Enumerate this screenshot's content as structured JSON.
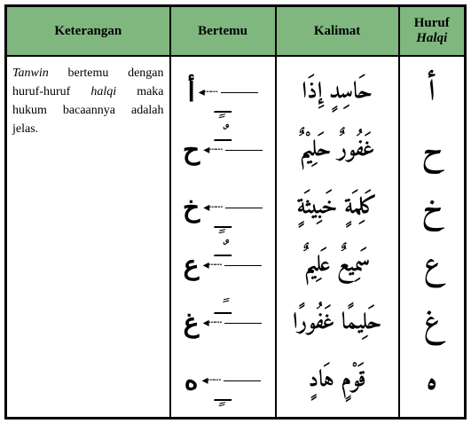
{
  "header": {
    "keterangan": "Keterangan",
    "bertemu": "Bertemu",
    "kalimat": "Kalimat",
    "huruf_line1": "Huruf",
    "huruf_line2": "Halqi"
  },
  "keterangan_text": {
    "part1": "Tanwin",
    "part2": " bertemu dengan huruf-huruf ",
    "part3": "halqi",
    "part4": " maka hukum bacaannya adalah jelas."
  },
  "rows": [
    {
      "arrow": "◂┄┄",
      "tanwin": "ــٍـ",
      "tanwin_pos": "bottom",
      "target": "أ",
      "kalimat": "حَاسِدٍ إِذَا",
      "huruf": "أ"
    },
    {
      "arrow": "◂┄┄",
      "tanwin": "ــٌـ",
      "tanwin_pos": "top",
      "target": "ح",
      "kalimat": "غَفُورٌ حَلِيْمٌ",
      "huruf": "ح"
    },
    {
      "arrow": "◂┄┄",
      "tanwin": "ــٍـ",
      "tanwin_pos": "bottom",
      "target": "خ",
      "kalimat": "كَلِمَةٍ خَبِيثَةٍ",
      "huruf": "خ"
    },
    {
      "arrow": "◂┄┄",
      "tanwin": "ــٌـ",
      "tanwin_pos": "top",
      "target": "ع",
      "kalimat": "سَمِيعٌ عَلِيمٌ",
      "huruf": "ع"
    },
    {
      "arrow": "◂┄┄",
      "tanwin": "ــًـ",
      "tanwin_pos": "top",
      "target": "غ",
      "kalimat": "حَلِيمًا غَفُورًا",
      "huruf": "غ"
    },
    {
      "arrow": "◂┄┄",
      "tanwin": "ــٍـ",
      "tanwin_pos": "bottom",
      "target": "ه",
      "kalimat": "قَوْمٍ هَادٍ",
      "huruf": "ه"
    }
  ],
  "colors": {
    "header_bg": "#7fb77e",
    "border": "#000000",
    "text": "#000000",
    "bg": "#ffffff"
  }
}
